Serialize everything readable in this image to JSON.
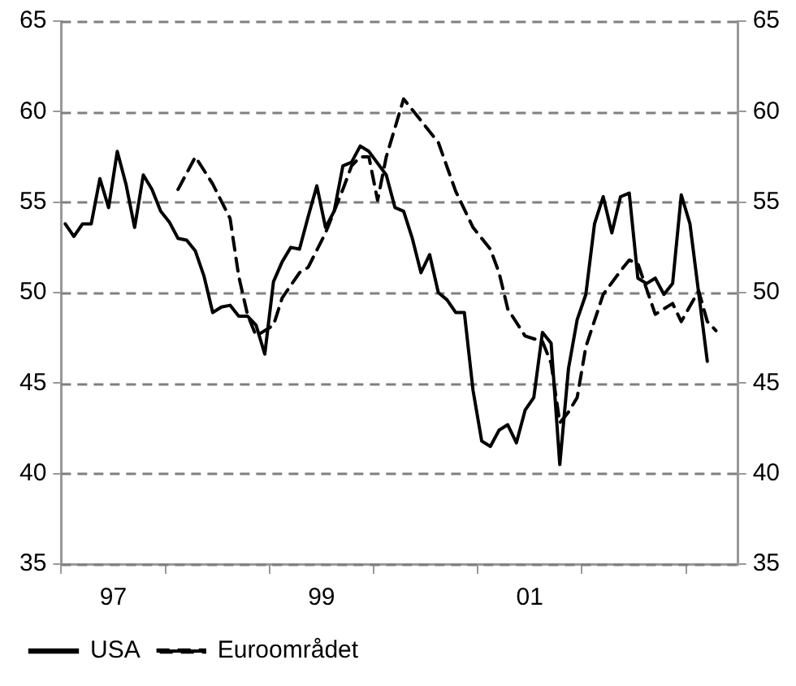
{
  "chart_data": {
    "type": "line",
    "xlim": [
      "1997",
      "2003-07"
    ],
    "xticks": [
      {
        "value": "1997",
        "label": null
      },
      {
        "value": "1997-07",
        "label": "97"
      },
      {
        "value": "1998",
        "label": null
      },
      {
        "value": "1999",
        "label": null
      },
      {
        "value": "1999-07",
        "label": "99"
      },
      {
        "value": "2000",
        "label": null
      },
      {
        "value": "2001",
        "label": null
      },
      {
        "value": "2001-07",
        "label": "01"
      },
      {
        "value": "2002",
        "label": null
      },
      {
        "value": "2003",
        "label": null
      }
    ],
    "ylim": [
      35,
      65
    ],
    "yticks": [
      35,
      40,
      45,
      50,
      55,
      60,
      65
    ],
    "y2lim": [
      35,
      65
    ],
    "y2ticks": [
      35,
      40,
      45,
      50,
      55,
      60,
      65
    ],
    "grid": "y",
    "legend": "bottom left",
    "marker": "none",
    "series": [
      {
        "name": "USA",
        "color": "#000000",
        "line_style": "solid",
        "x": [
          "1997-01-15",
          "1997-02-15",
          "1997-03-15",
          "1997-04-15",
          "1997-05-15",
          "1997-06-15",
          "1997-07-15",
          "1997-08-15",
          "1997-09-15",
          "1997-10-15",
          "1997-11-15",
          "1997-12-15",
          "1998-01-15",
          "1998-02-15",
          "1998-03-15",
          "1998-04-15",
          "1998-05-15",
          "1998-06-15",
          "1998-07-15",
          "1998-08-15",
          "1998-09-15",
          "1998-10-15",
          "1998-11-15",
          "1998-12-15",
          "1999-01-15",
          "1999-02-15",
          "1999-03-15",
          "1999-04-15",
          "1999-05-15",
          "1999-06-15",
          "1999-07-15",
          "1999-08-15",
          "1999-09-15",
          "1999-10-15",
          "1999-11-15",
          "1999-12-15",
          "2000-02-15",
          "2000-03-15",
          "2000-04-15",
          "2000-05-15",
          "2000-06-15",
          "2000-07-15",
          "2000-08-15",
          "2000-09-15",
          "2000-10-15",
          "2000-11-15",
          "2000-12-15",
          "2001-01-15",
          "2001-02-15",
          "2001-03-15",
          "2001-04-15",
          "2001-05-15",
          "2001-06-15",
          "2001-07-15",
          "2001-08-15",
          "2001-09-15",
          "2001-10-15",
          "2001-11-15",
          "2001-12-15",
          "2002-01-15",
          "2002-02-15",
          "2002-03-15",
          "2002-04-15",
          "2002-05-15",
          "2002-06-15",
          "2002-07-15",
          "2002-08-15",
          "2002-09-15",
          "2002-10-15",
          "2002-11-15",
          "2002-12-15",
          "2003-01-15",
          "2003-02-15",
          "2003-03-15"
        ],
        "values": [
          53.8,
          53.1,
          53.8,
          53.8,
          56.3,
          54.7,
          57.8,
          56.0,
          53.6,
          56.5,
          55.7,
          54.5,
          53.9,
          53.0,
          52.9,
          52.3,
          50.9,
          48.9,
          49.2,
          49.3,
          48.7,
          48.7,
          48.2,
          46.6,
          50.6,
          51.7,
          52.5,
          52.4,
          54.2,
          55.9,
          53.6,
          54.5,
          57.0,
          57.2,
          58.1,
          57.8,
          56.5,
          54.7,
          54.5,
          53.0,
          51.1,
          52.1,
          50.0,
          49.6,
          48.9,
          48.9,
          44.6,
          41.8,
          41.5,
          42.4,
          42.7,
          41.7,
          43.5,
          44.2,
          47.8,
          47.2,
          40.5,
          45.8,
          48.5,
          49.9,
          53.8,
          55.3,
          53.3,
          55.3,
          55.5,
          50.8,
          50.5,
          50.8,
          49.9,
          50.5,
          55.4,
          53.8,
          50.0,
          46.2
        ]
      },
      {
        "name": "Euroområdet",
        "color": "#000000",
        "line_style": "dashed",
        "x": [
          "1998-02-15",
          "1998-04-15",
          "1998-06-15",
          "1998-08-15",
          "1998-09-15",
          "1998-10-15",
          "1998-11-15",
          "1999-01-15",
          "1999-02-15",
          "1999-04-15",
          "1999-05-15",
          "1999-07-15",
          "1999-09-15",
          "1999-10-15",
          "1999-11-15",
          "1999-12-15",
          "2000-01-15",
          "2000-02-15",
          "2000-04-15",
          "2000-06-15",
          "2000-08-15",
          "2000-10-15",
          "2000-12-15",
          "2001-02-15",
          "2001-03-15",
          "2001-04-15",
          "2001-06-15",
          "2001-08-15",
          "2001-09-15",
          "2001-10-15",
          "2001-11-15",
          "2001-12-15",
          "2002-01-15",
          "2002-03-15",
          "2002-05-15",
          "2002-06-15",
          "2002-07-15",
          "2002-09-15",
          "2002-11-15",
          "2002-12-15",
          "2003-02-15",
          "2003-03-15",
          "2003-04-15"
        ],
        "values": [
          55.7,
          57.5,
          56.0,
          54.1,
          50.9,
          48.8,
          47.6,
          48.2,
          49.7,
          51.1,
          51.4,
          53.3,
          55.7,
          57.0,
          57.5,
          57.5,
          55.1,
          57.5,
          60.7,
          59.5,
          58.3,
          55.6,
          53.6,
          52.4,
          51.1,
          49.1,
          47.6,
          47.3,
          46.1,
          42.8,
          43.4,
          44.2,
          47.0,
          49.9,
          51.2,
          51.8,
          51.6,
          48.8,
          49.4,
          48.4,
          50.1,
          48.4,
          47.9
        ]
      }
    ]
  }
}
